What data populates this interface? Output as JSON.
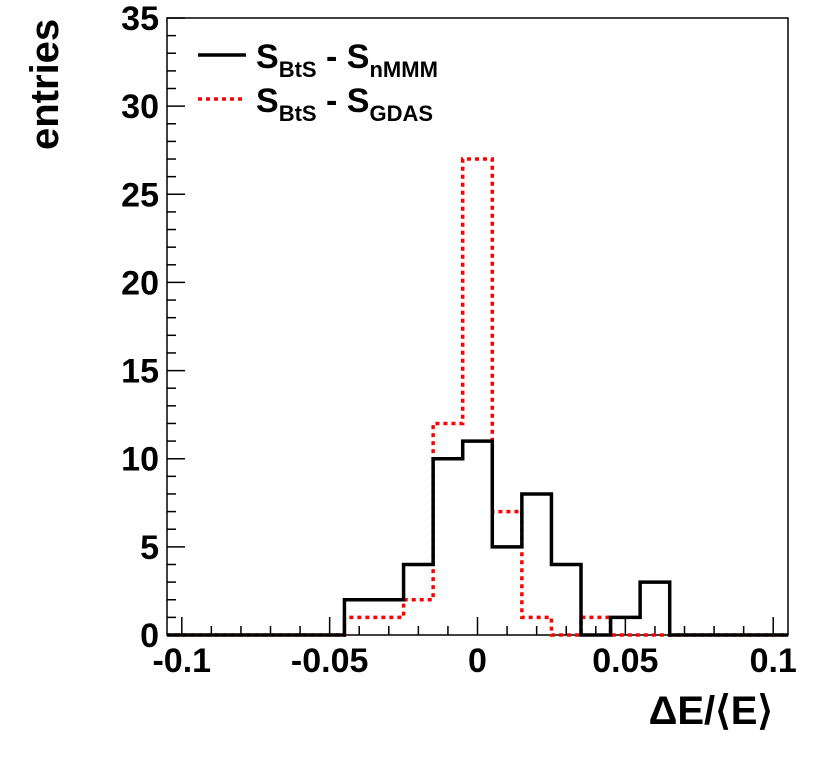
{
  "chart_data": {
    "type": "histogram",
    "xlabel": "ΔE/⟨E⟩",
    "ylabel": "entries",
    "xlim": [
      -0.105,
      0.105
    ],
    "ylim": [
      0,
      35
    ],
    "x_ticks": [
      -0.1,
      -0.05,
      0,
      0.05,
      0.1
    ],
    "x_tick_labels": [
      "-0.1",
      "-0.05",
      "0",
      "0.05",
      "0.1"
    ],
    "y_ticks": [
      0,
      5,
      10,
      15,
      20,
      25,
      30,
      35
    ],
    "y_tick_labels": [
      "0",
      "5",
      "10",
      "15",
      "20",
      "25",
      "30",
      "35"
    ],
    "bin_edges": [
      -0.105,
      -0.095,
      -0.085,
      -0.075,
      -0.065,
      -0.055,
      -0.045,
      -0.035,
      -0.025,
      -0.015,
      -0.005,
      0.005,
      0.015,
      0.025,
      0.035,
      0.045,
      0.055,
      0.065,
      0.075,
      0.085,
      0.095,
      0.105
    ],
    "grid": false,
    "legend_position": "top-left",
    "series": [
      {
        "label_main": "S",
        "label_sub1": "BtS",
        "label_mid": " - S",
        "label_sub2": "nMMM",
        "color": "#000000",
        "style": "solid",
        "counts": [
          0,
          0,
          0,
          0,
          0,
          0,
          2,
          2,
          4,
          10,
          11,
          5,
          8,
          4,
          0,
          1,
          3,
          0,
          0,
          0,
          0
        ]
      },
      {
        "label_main": "S",
        "label_sub1": "BtS",
        "label_mid": " - S",
        "label_sub2": "GDAS",
        "color": "#ff0000",
        "style": "dotted",
        "counts": [
          0,
          0,
          0,
          0,
          0,
          0,
          1,
          1,
          2,
          12,
          27,
          7,
          1,
          0,
          1,
          0,
          0,
          0,
          0,
          0,
          0
        ]
      }
    ]
  }
}
